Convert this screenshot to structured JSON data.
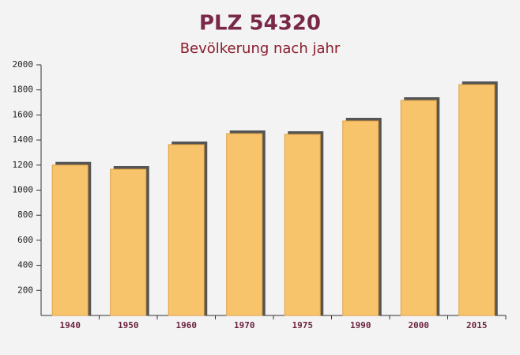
{
  "chart_data": {
    "type": "bar",
    "title": "PLZ 54320",
    "subtitle": "Bevölkerung nach jahr",
    "categories": [
      "1940",
      "1950",
      "1960",
      "1970",
      "1975",
      "1990",
      "2000",
      "2015"
    ],
    "values": [
      1200,
      1167,
      1363,
      1451,
      1445,
      1552,
      1716,
      1842
    ],
    "color": "#f7c46c",
    "ylim": [
      0,
      2000
    ],
    "yticks": [
      200,
      400,
      600,
      800,
      1000,
      1200,
      1400,
      1600,
      1800,
      2000
    ]
  }
}
